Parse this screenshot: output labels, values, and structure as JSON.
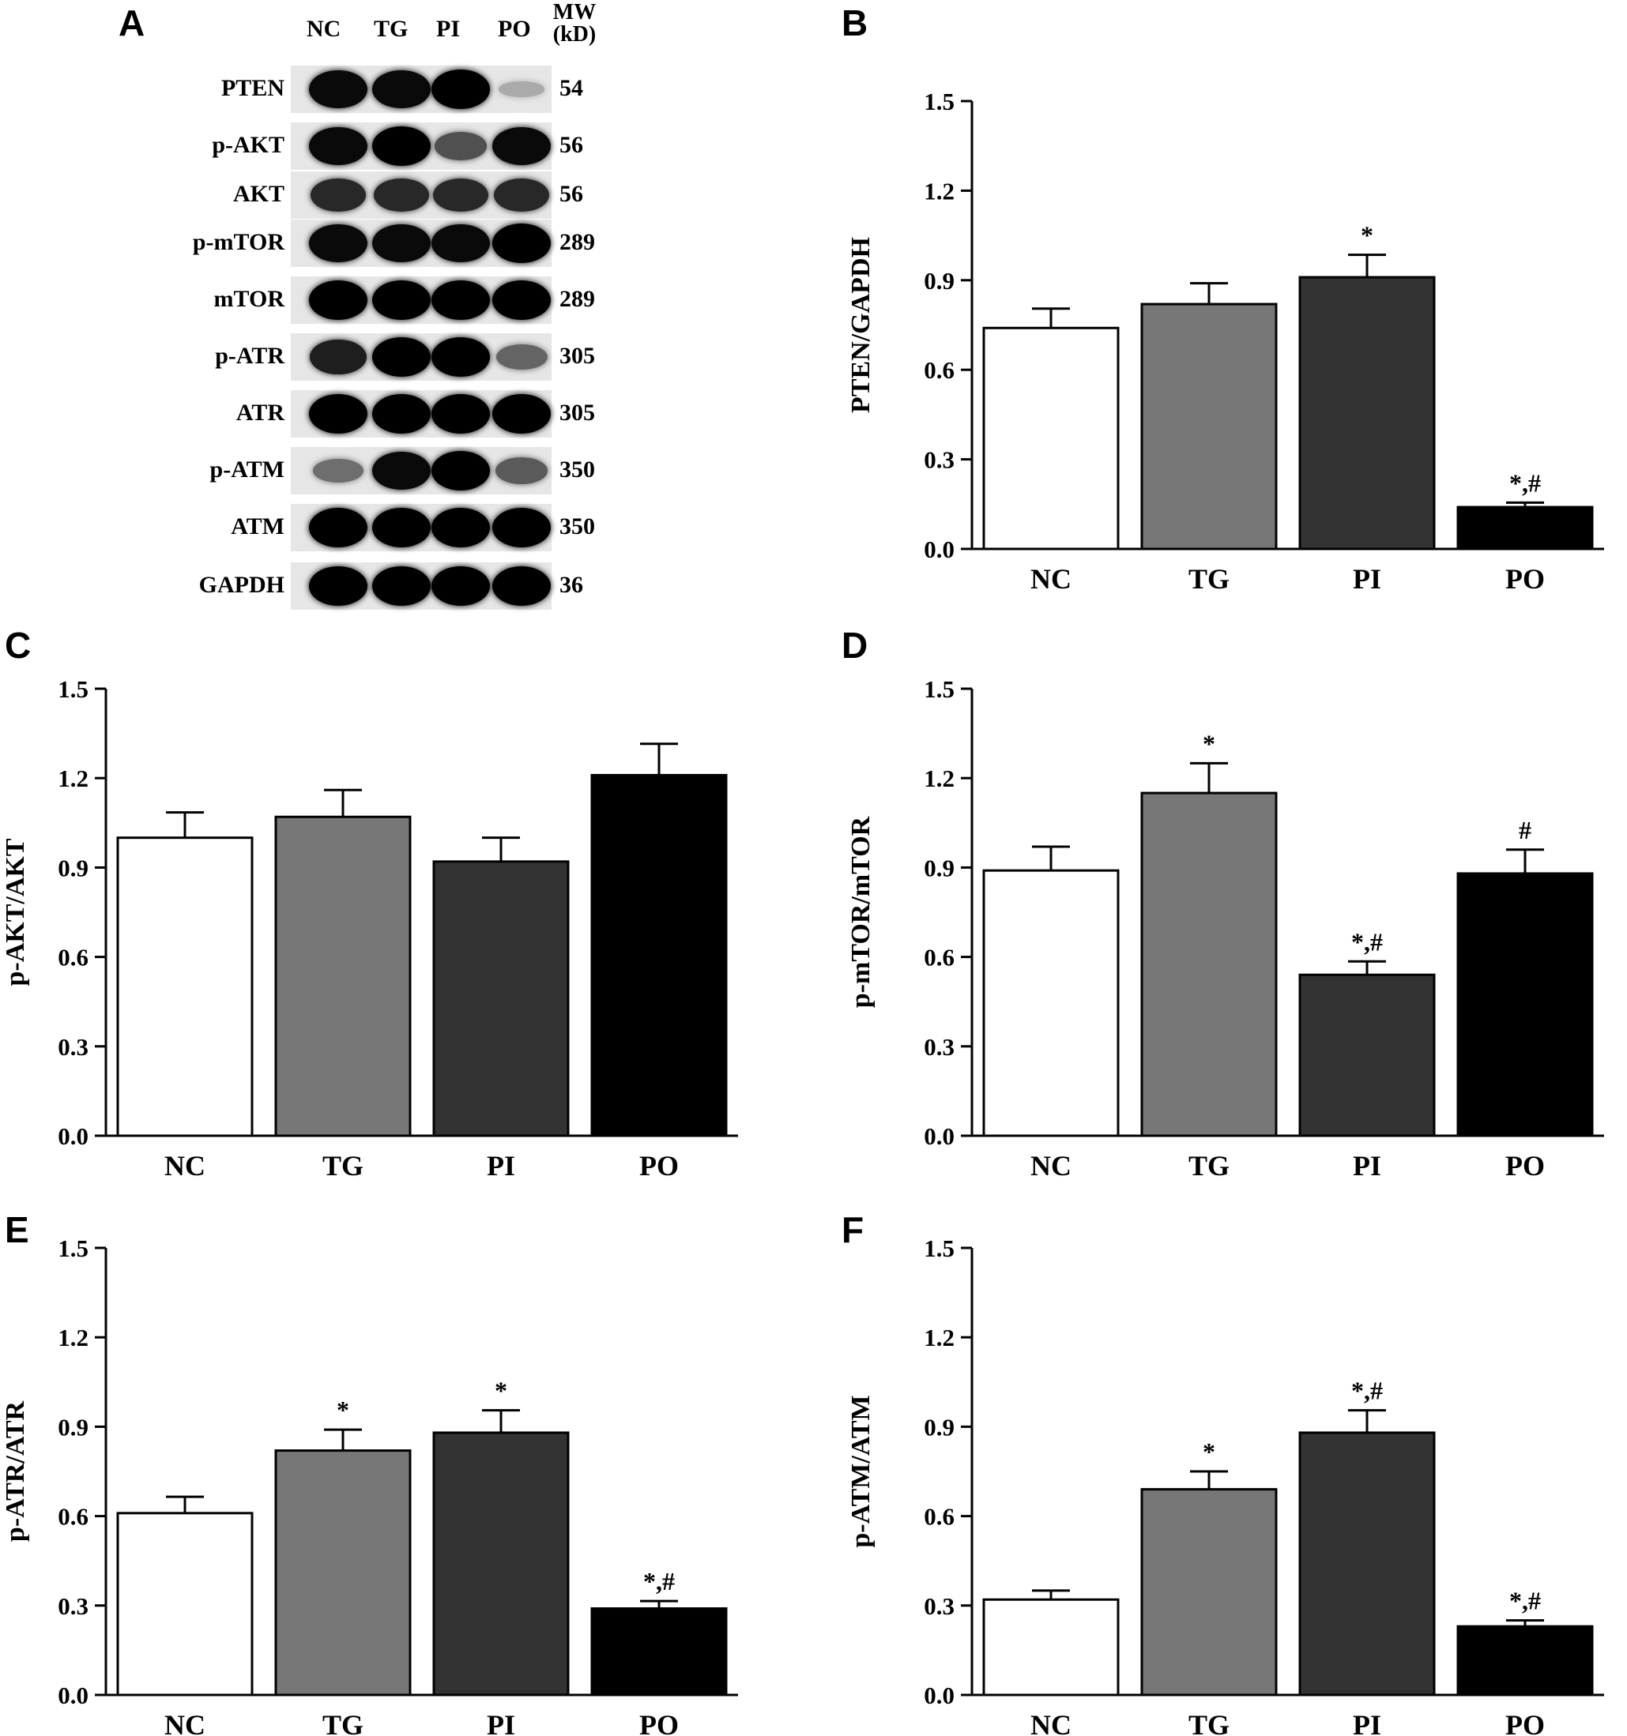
{
  "panel_labels": [
    "A",
    "B",
    "C",
    "D",
    "E",
    "F"
  ],
  "blot": {
    "lanes": [
      "NC",
      "TG",
      "PI",
      "PO"
    ],
    "mw_header": [
      "MW",
      "(kD)"
    ],
    "rows": [
      {
        "label": "PTEN",
        "mw": "54",
        "intensity": [
          0.95,
          0.95,
          1.0,
          0.15
        ]
      },
      {
        "label": "p-AKT",
        "mw": "56",
        "intensity": [
          0.95,
          1.0,
          0.6,
          0.95
        ]
      },
      {
        "label": "AKT",
        "mw": "56",
        "intensity": [
          0.8,
          0.8,
          0.8,
          0.8
        ]
      },
      {
        "label": "p-mTOR",
        "mw": "289",
        "intensity": [
          0.95,
          0.95,
          0.95,
          1.0
        ]
      },
      {
        "label": "mTOR",
        "mw": "289",
        "intensity": [
          1.0,
          1.0,
          1.0,
          1.0
        ]
      },
      {
        "label": "p-ATR",
        "mw": "305",
        "intensity": [
          0.85,
          1.0,
          1.0,
          0.5
        ]
      },
      {
        "label": "ATR",
        "mw": "305",
        "intensity": [
          1.0,
          1.0,
          1.0,
          1.0
        ]
      },
      {
        "label": "p-ATM",
        "mw": "350",
        "intensity": [
          0.45,
          0.95,
          1.0,
          0.55
        ]
      },
      {
        "label": "ATM",
        "mw": "350",
        "intensity": [
          1.0,
          1.0,
          1.0,
          1.0
        ]
      },
      {
        "label": "GAPDH",
        "mw": "36",
        "intensity": [
          1.0,
          1.0,
          1.0,
          1.0
        ]
      }
    ]
  },
  "colors": {
    "NC": "#ffffff",
    "TG": "#777777",
    "PI": "#333333",
    "PO": "#000000"
  },
  "chart_data": [
    {
      "panel": "B",
      "type": "bar",
      "categories": [
        "NC",
        "TG",
        "PI",
        "PO"
      ],
      "values": [
        0.74,
        0.82,
        0.91,
        0.14
      ],
      "errors": [
        0.065,
        0.07,
        0.075,
        0.015
      ],
      "annotations": [
        "",
        "",
        "*",
        "*,#"
      ],
      "ylabel": "PTEN/GAPDH",
      "xlabel": "",
      "ylim": [
        0,
        1.5
      ],
      "yticks": [
        "0.0",
        "0.3",
        "0.6",
        "0.9",
        "1.2",
        "1.5"
      ]
    },
    {
      "panel": "C",
      "type": "bar",
      "categories": [
        "NC",
        "TG",
        "PI",
        "PO"
      ],
      "values": [
        1.0,
        1.07,
        0.92,
        1.21
      ],
      "errors": [
        0.085,
        0.09,
        0.08,
        0.105
      ],
      "annotations": [
        "",
        "",
        "",
        ""
      ],
      "ylabel": "p-AKT/AKT",
      "xlabel": "",
      "ylim": [
        0,
        1.5
      ],
      "yticks": [
        "0.0",
        "0.3",
        "0.6",
        "0.9",
        "1.2",
        "1.5"
      ]
    },
    {
      "panel": "D",
      "type": "bar",
      "categories": [
        "NC",
        "TG",
        "PI",
        "PO"
      ],
      "values": [
        0.89,
        1.15,
        0.54,
        0.88
      ],
      "errors": [
        0.08,
        0.1,
        0.045,
        0.08
      ],
      "annotations": [
        "",
        "*",
        "*,#",
        "#"
      ],
      "ylabel": "p-mTOR/mTOR",
      "xlabel": "",
      "ylim": [
        0,
        1.5
      ],
      "yticks": [
        "0.0",
        "0.3",
        "0.6",
        "0.9",
        "1.2",
        "1.5"
      ]
    },
    {
      "panel": "E",
      "type": "bar",
      "categories": [
        "NC",
        "TG",
        "PI",
        "PO"
      ],
      "values": [
        0.61,
        0.82,
        0.88,
        0.29
      ],
      "errors": [
        0.055,
        0.07,
        0.075,
        0.025
      ],
      "annotations": [
        "",
        "*",
        "*",
        "*,#"
      ],
      "ylabel": "p-ATR/ATR",
      "xlabel": "",
      "ylim": [
        0,
        1.5
      ],
      "yticks": [
        "0.0",
        "0.3",
        "0.6",
        "0.9",
        "1.2",
        "1.5"
      ]
    },
    {
      "panel": "F",
      "type": "bar",
      "categories": [
        "NC",
        "TG",
        "PI",
        "PO"
      ],
      "values": [
        0.32,
        0.69,
        0.88,
        0.23
      ],
      "errors": [
        0.03,
        0.06,
        0.075,
        0.02
      ],
      "annotations": [
        "",
        "*",
        "*,#",
        "*,#"
      ],
      "ylabel": "p-ATM/ATM",
      "xlabel": "",
      "ylim": [
        0,
        1.5
      ],
      "yticks": [
        "0.0",
        "0.3",
        "0.6",
        "0.9",
        "1.2",
        "1.5"
      ]
    }
  ]
}
